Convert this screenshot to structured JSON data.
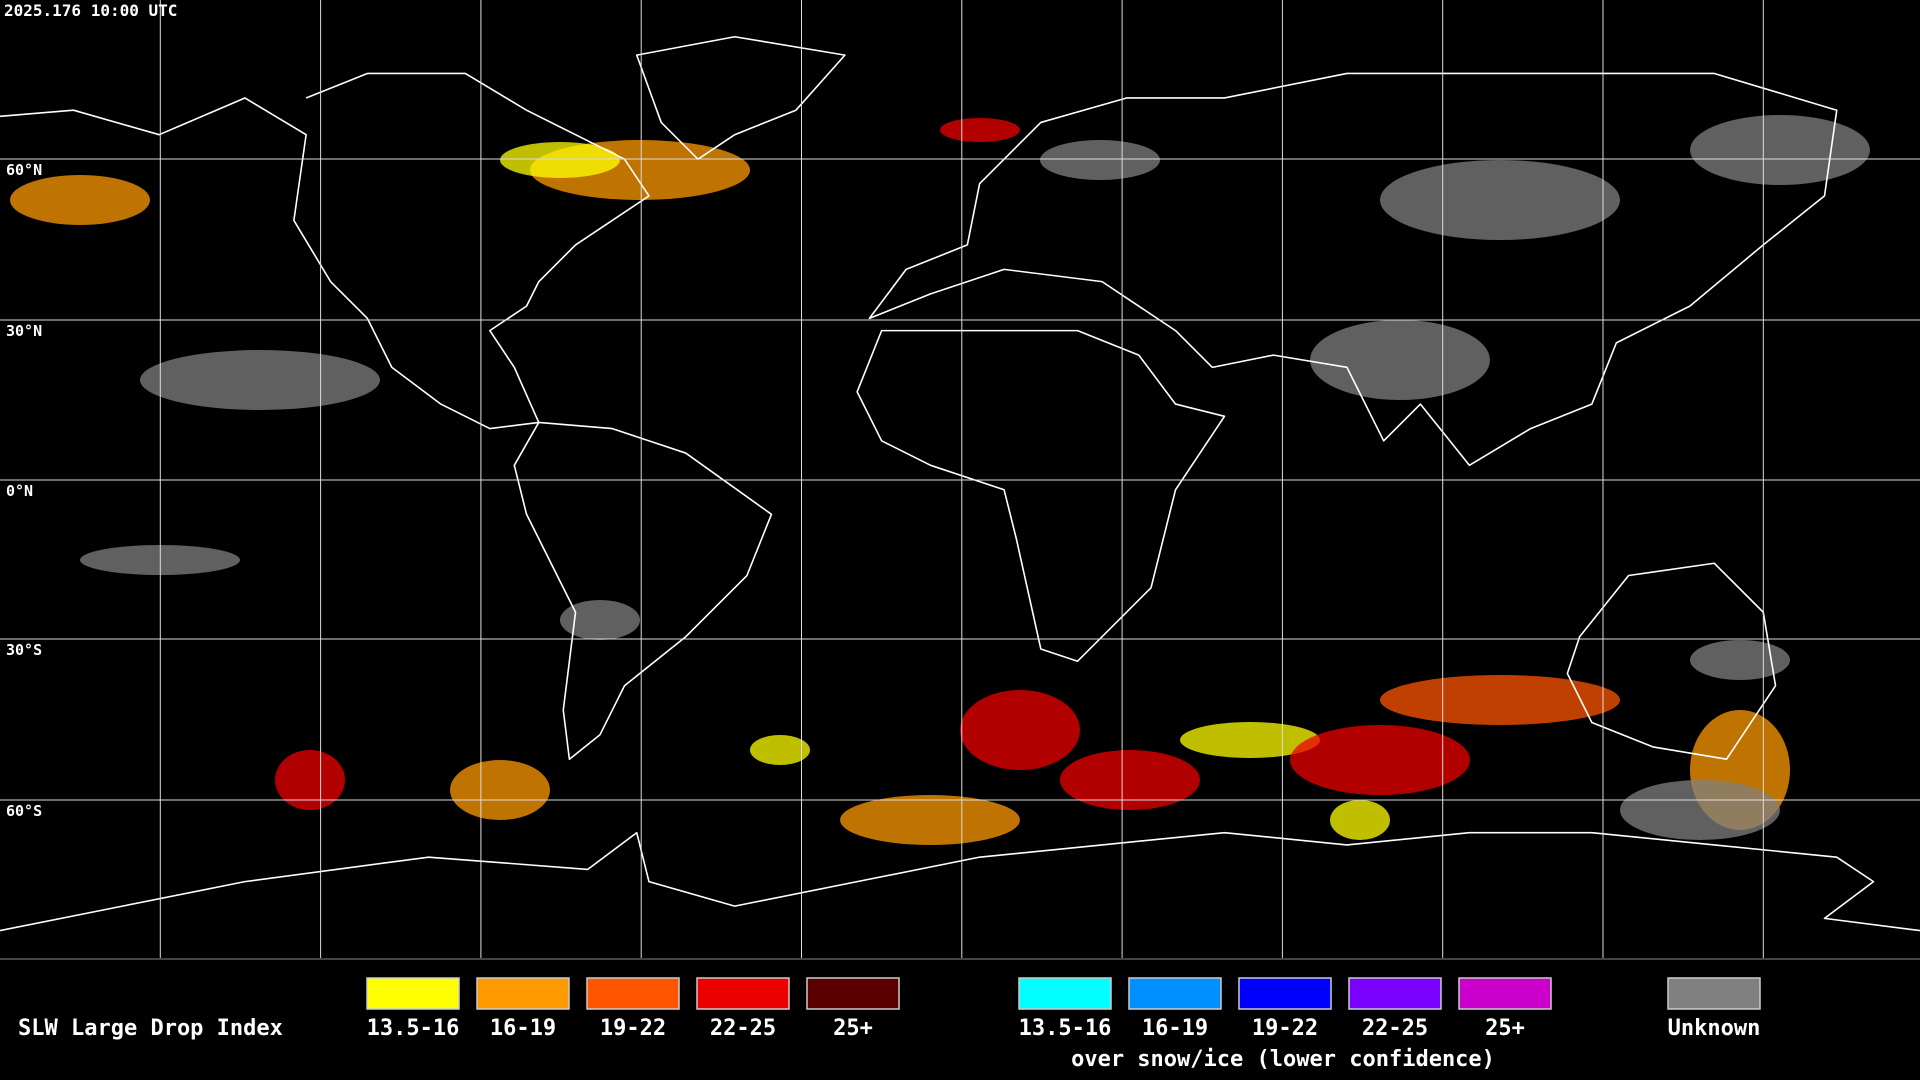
{
  "header": {
    "timestamp": "2025.176 10:00 UTC"
  },
  "map": {
    "latitude_labels": [
      "60°N",
      "30°N",
      "0°N",
      "30°S",
      "60°S"
    ]
  },
  "legend": {
    "title": "SLW Large Drop Index",
    "classes": [
      {
        "label": "13.5-16",
        "color": "#ffff00"
      },
      {
        "label": "16-19",
        "color": "#ff9900"
      },
      {
        "label": "19-22",
        "color": "#ff5500"
      },
      {
        "label": "22-25",
        "color": "#ee0000"
      },
      {
        "label": "25+",
        "color": "#5a0000"
      }
    ],
    "snow_ice_classes": [
      {
        "label": "13.5-16",
        "color": "#00ffff"
      },
      {
        "label": "16-19",
        "color": "#0090ff"
      },
      {
        "label": "19-22",
        "color": "#0000ff"
      },
      {
        "label": "22-25",
        "color": "#7a00ff"
      },
      {
        "label": "25+",
        "color": "#cc00cc"
      }
    ],
    "snow_ice_note": "over snow/ice (lower confidence)",
    "unknown": {
      "label": "Unknown",
      "color": "#808080"
    }
  }
}
